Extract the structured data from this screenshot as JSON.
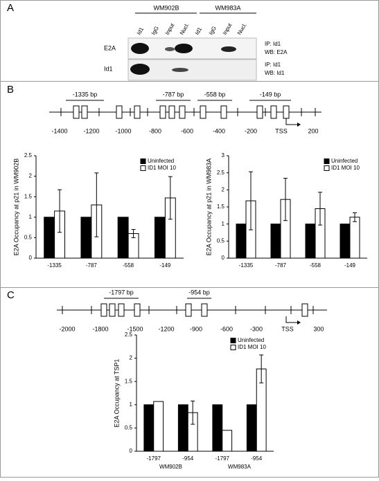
{
  "panel_a": {
    "label": "A",
    "cell_lines": [
      "WM902B",
      "WM983A"
    ],
    "lanes": [
      "Id1",
      "IgG",
      "Input",
      "Nucl.",
      "Id1",
      "IgG",
      "Input",
      "Nucl."
    ],
    "rows": [
      {
        "label": "E2A",
        "caption": [
          "IP: Id1",
          "WB: E2A"
        ]
      },
      {
        "label": "Id1",
        "caption": [
          "IP: Id1",
          "WB: Id1"
        ]
      }
    ]
  },
  "panel_b": {
    "label": "B",
    "regions": [
      "-1335 bp",
      "-787 bp",
      "-558 bp",
      "-149 bp"
    ],
    "axis_labels": [
      "-1400",
      "-1200",
      "-1000",
      "-800",
      "-600",
      "-400",
      "-200",
      "TSS",
      "200"
    ]
  },
  "panel_c": {
    "label": "C",
    "regions": [
      "-1797 bp",
      "-954 bp"
    ],
    "axis_labels": [
      "-2000",
      "-1800",
      "-1500",
      "-1200",
      "-900",
      "-600",
      "-300",
      "TSS",
      "300"
    ]
  },
  "chart_data": [
    {
      "type": "bar",
      "y_label": "E2A Occupancy at p21 in WM902B",
      "categories": [
        "-1335",
        "-787",
        "-558",
        "-149"
      ],
      "series": [
        {
          "name": "Uninfected",
          "color": "#000000",
          "values": [
            1,
            1,
            1,
            1
          ]
        },
        {
          "name": "ID1 MOI 10",
          "color": "#ffffff",
          "values": [
            1.15,
            1.3,
            0.6,
            1.47
          ],
          "errors": [
            0.52,
            0.78,
            0.1,
            0.52
          ]
        }
      ],
      "ylim": [
        0,
        2.5
      ],
      "yticks": [
        0,
        0.5,
        1,
        1.5,
        2,
        2.5
      ]
    },
    {
      "type": "bar",
      "y_label": "E2A Occupancy at p21 in WM983A",
      "categories": [
        "-1335",
        "-787",
        "-558",
        "-149"
      ],
      "series": [
        {
          "name": "Uninfected",
          "color": "#000000",
          "values": [
            1,
            1,
            1,
            1
          ]
        },
        {
          "name": "ID1 MOI 10",
          "color": "#ffffff",
          "values": [
            1.68,
            1.72,
            1.45,
            1.2
          ],
          "errors": [
            0.85,
            0.62,
            0.48,
            0.13
          ]
        }
      ],
      "ylim": [
        0,
        3
      ],
      "yticks": [
        0,
        0.5,
        1,
        1.5,
        2,
        2.5,
        3
      ]
    },
    {
      "type": "bar",
      "y_label": "E2A Occupancy at TSP1",
      "categories": [
        "-1797",
        "-954",
        "-1797",
        "-954"
      ],
      "groups": [
        "WM902B",
        "WM983A"
      ],
      "series": [
        {
          "name": "Uninfected",
          "color": "#000000",
          "values": [
            1,
            1,
            1,
            1
          ]
        },
        {
          "name": "ID1 MOI 10",
          "color": "#ffffff",
          "values": [
            1.07,
            0.83,
            0.45,
            1.77
          ],
          "errors": [
            null,
            0.25,
            null,
            0.3
          ]
        }
      ],
      "ylim": [
        0,
        2.5
      ],
      "yticks": [
        0,
        0.5,
        1,
        1.5,
        2,
        2.5
      ]
    }
  ]
}
